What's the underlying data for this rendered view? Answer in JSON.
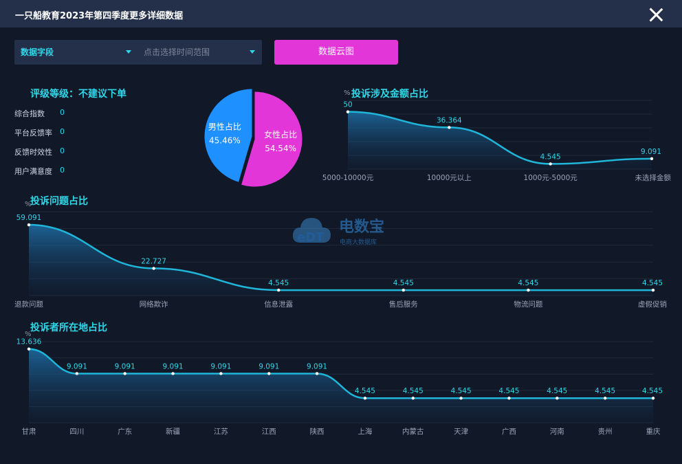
{
  "window": {
    "title": "一只船教育2023年第四季度更多详细数据"
  },
  "filters": {
    "field_label": "数据字段",
    "date_placeholder": "点击选择时间范围",
    "button_label": "数据云图"
  },
  "rating": {
    "title": "评级等级：不建议下单",
    "items": [
      {
        "label": "综合指数",
        "value": "0"
      },
      {
        "label": "平台反馈率",
        "value": "0"
      },
      {
        "label": "反馈时效性",
        "value": "0"
      },
      {
        "label": "用户满意度",
        "value": "0"
      }
    ]
  },
  "watermark": {
    "brand": "电数宝",
    "tagline": "电商大数据库",
    "logo_text": "eDT"
  },
  "chart_data": [
    {
      "id": "gender",
      "type": "pie",
      "slices": [
        {
          "label": "男性占比",
          "value": 45.46,
          "display": "45.46%",
          "color": "#1e90ff"
        },
        {
          "label": "女性占比",
          "value": 54.54,
          "display": "54.54%",
          "color": "#e236d8"
        }
      ]
    },
    {
      "id": "amount",
      "type": "area",
      "title": "投诉涉及金额占比",
      "ylabel": "%",
      "categories": [
        "5000-10000元",
        "10000元以上",
        "1000元-5000元",
        "未选择金额"
      ],
      "values": [
        50,
        36.364,
        4.545,
        9.091
      ],
      "labels": [
        "50",
        "36.364",
        "4.545",
        "9.091"
      ],
      "ylim": [
        0,
        60
      ]
    },
    {
      "id": "issue",
      "type": "area",
      "title": "投诉问题占比",
      "ylabel": "%",
      "categories": [
        "退款问题",
        "网络欺诈",
        "信息泄露",
        "售后服务",
        "物流问题",
        "虚假促销"
      ],
      "values": [
        59.091,
        22.727,
        4.545,
        4.545,
        4.545,
        4.545
      ],
      "labels": [
        "59.091",
        "22.727",
        "4.545",
        "4.545",
        "4.545",
        "4.545"
      ],
      "ylim": [
        0,
        70
      ]
    },
    {
      "id": "region",
      "type": "area",
      "title": "投诉者所在地占比",
      "ylabel": "%",
      "categories": [
        "甘肃",
        "四川",
        "广东",
        "新疆",
        "江苏",
        "江西",
        "陕西",
        "上海",
        "内蒙古",
        "天津",
        "广西",
        "河南",
        "贵州",
        "重庆"
      ],
      "values": [
        13.636,
        9.091,
        9.091,
        9.091,
        9.091,
        9.091,
        9.091,
        4.545,
        4.545,
        4.545,
        4.545,
        4.545,
        4.545,
        4.545
      ],
      "labels": [
        "13.636",
        "9.091",
        "9.091",
        "9.091",
        "9.091",
        "9.091",
        "9.091",
        "4.545",
        "4.545",
        "4.545",
        "4.545",
        "4.545",
        "4.545",
        "4.545"
      ],
      "ylim": [
        0,
        15
      ]
    }
  ],
  "colors": {
    "accent": "#2fd7e8",
    "line": "#1fb6d9",
    "background": "#111827",
    "header": "#243049",
    "button": "#e236d8"
  }
}
